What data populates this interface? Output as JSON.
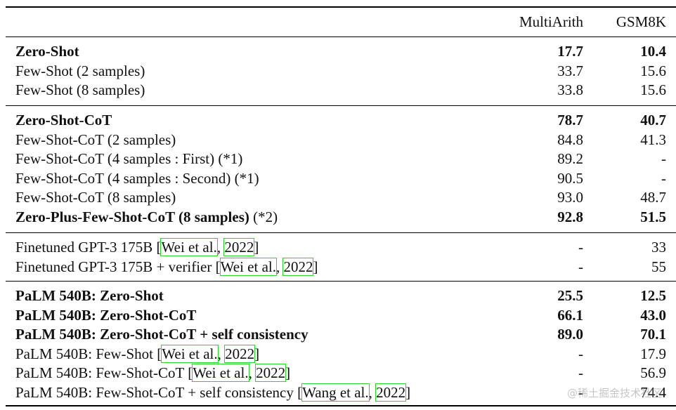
{
  "header": {
    "col1": "MultiArith",
    "col2": "GSM8K"
  },
  "groups": [
    {
      "rows": [
        {
          "bold": true,
          "name": "Zero-Shot",
          "v1": "17.7",
          "v2": "10.4"
        },
        {
          "bold": false,
          "name": "Few-Shot (2 samples)",
          "v1": "33.7",
          "v2": "15.6"
        },
        {
          "bold": false,
          "name": "Few-Shot (8 samples)",
          "v1": "33.8",
          "v2": "15.6"
        }
      ]
    },
    {
      "rows": [
        {
          "bold": true,
          "name": "Zero-Shot-CoT",
          "v1": "78.7",
          "v2": "40.7"
        },
        {
          "bold": false,
          "name": "Few-Shot-CoT (2 samples)",
          "v1": "84.8",
          "v2": "41.3"
        },
        {
          "bold": false,
          "name": "Few-Shot-CoT (4 samples : First) (*1)",
          "v1": "89.2",
          "v2": "-"
        },
        {
          "bold": false,
          "name": "Few-Shot-CoT (4 samples : Second) (*1)",
          "v1": "90.5",
          "v2": "-"
        },
        {
          "bold": false,
          "name": "Few-Shot-CoT (8 samples)",
          "v1": "93.0",
          "v2": "48.7"
        },
        {
          "bold": true,
          "name": "Zero-Plus-Few-Shot-CoT (8 samples)",
          "suffix": " (*2)",
          "v1": "92.8",
          "v2": "51.5"
        }
      ]
    },
    {
      "rows": [
        {
          "bold": false,
          "name": "Finetuned GPT-3 175B ",
          "cite_author": "Wei et al.",
          "cite_year": "2022",
          "v1": "-",
          "v2": "33"
        },
        {
          "bold": false,
          "name": "Finetuned GPT-3 175B + verifier ",
          "cite_author": "Wei et al.",
          "cite_year": "2022",
          "v1": "-",
          "v2": "55"
        }
      ]
    },
    {
      "rows": [
        {
          "bold": true,
          "name": "PaLM 540B: Zero-Shot",
          "v1": "25.5",
          "v2": "12.5"
        },
        {
          "bold": true,
          "name": "PaLM 540B: Zero-Shot-CoT",
          "v1": "66.1",
          "v2": "43.0"
        },
        {
          "bold": true,
          "name": "PaLM 540B: Zero-Shot-CoT + self consistency",
          "v1": "89.0",
          "v2": "70.1"
        },
        {
          "bold": false,
          "name": "PaLM 540B: Few-Shot ",
          "cite_author": "Wei et al.",
          "cite_year": "2022",
          "v1": "-",
          "v2": "17.9"
        },
        {
          "bold": false,
          "name": "PaLM 540B: Few-Shot-CoT ",
          "cite_author": "Wei et al.",
          "cite_year": "2022",
          "v1": "-",
          "v2": "56.9"
        },
        {
          "bold": false,
          "name": "PaLM 540B: Few-Shot-CoT + self consistency ",
          "cite_author": "Wang et al.",
          "cite_year": "2022",
          "v1": "-",
          "v2": "74.4"
        }
      ]
    }
  ],
  "watermark": "@稀土掘金技术社区"
}
